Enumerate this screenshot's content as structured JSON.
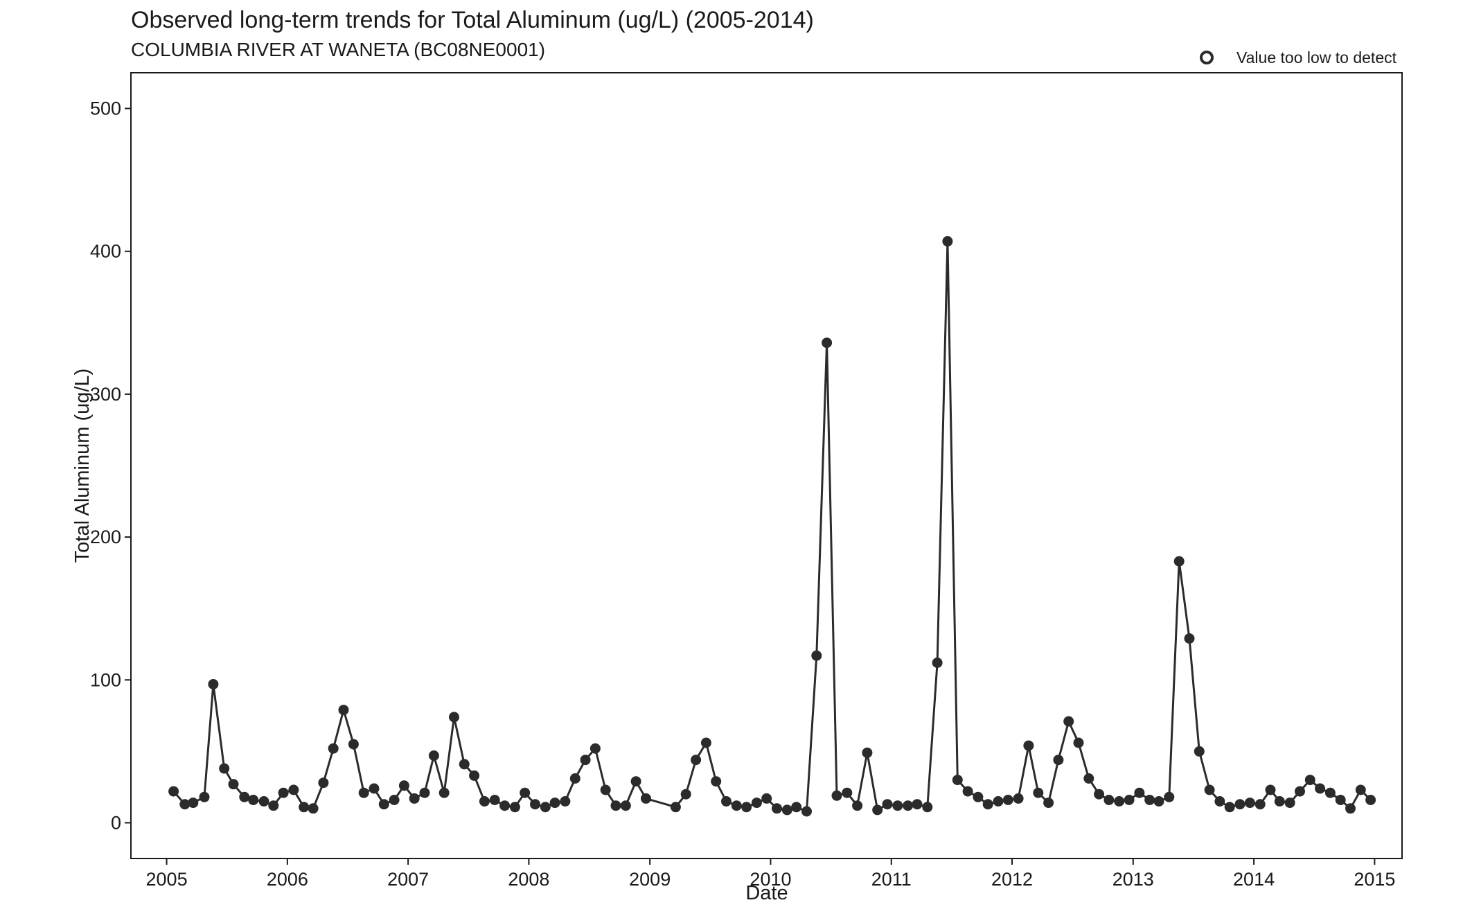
{
  "chart_data": {
    "type": "line",
    "title": "Observed long-term trends for Total Aluminum (ug/L) (2005-2014)",
    "subtitle": "COLUMBIA RIVER AT WANETA (BC08NE0001)",
    "xlabel": "Date",
    "ylabel": "Total Aluminum (ug/L)",
    "xlim": [
      "2004-09-15",
      "2015-03-25"
    ],
    "ylim": [
      -25,
      525
    ],
    "x_ticks": [
      "2005",
      "2006",
      "2007",
      "2008",
      "2009",
      "2010",
      "2011",
      "2012",
      "2013",
      "2014",
      "2015"
    ],
    "y_ticks": [
      0,
      100,
      200,
      300,
      400,
      500
    ],
    "grid": false,
    "legend": {
      "position": "top-right",
      "entries": [
        {
          "label": "Value too low to detect",
          "marker": "open-circle"
        }
      ]
    },
    "colors": {
      "series": "#2b2b2b",
      "frame": "#1a1a1a"
    },
    "series": [
      {
        "x": [
          "2005-01-22",
          "2005-02-25",
          "2005-03-22",
          "2005-04-25",
          "2005-05-22",
          "2005-06-24",
          "2005-07-22",
          "2005-08-24",
          "2005-09-20",
          "2005-10-22",
          "2005-11-20",
          "2005-12-20",
          "2006-01-20",
          "2006-02-20",
          "2006-03-20",
          "2006-04-20",
          "2006-05-20",
          "2006-06-20",
          "2006-07-20",
          "2006-08-20",
          "2006-09-20",
          "2006-10-20",
          "2006-11-20",
          "2006-12-20",
          "2007-01-20",
          "2007-02-20",
          "2007-03-20",
          "2007-04-20",
          "2007-05-20",
          "2007-06-20",
          "2007-07-20",
          "2007-08-20",
          "2007-09-20",
          "2007-10-20",
          "2007-11-20",
          "2007-12-20",
          "2008-01-20",
          "2008-02-20",
          "2008-03-20",
          "2008-04-20",
          "2008-05-20",
          "2008-06-20",
          "2008-07-20",
          "2008-08-20",
          "2008-09-20",
          "2008-10-20",
          "2008-11-20",
          "2008-12-20",
          "2009-03-20",
          "2009-04-20",
          "2009-05-20",
          "2009-06-20",
          "2009-07-20",
          "2009-08-20",
          "2009-09-20",
          "2009-10-20",
          "2009-11-20",
          "2009-12-20",
          "2010-01-20",
          "2010-02-20",
          "2010-03-20",
          "2010-04-20",
          "2010-05-20",
          "2010-06-20",
          "2010-07-20",
          "2010-08-20",
          "2010-09-20",
          "2010-10-20",
          "2010-11-20",
          "2010-12-20",
          "2011-01-20",
          "2011-02-20",
          "2011-03-20",
          "2011-04-20",
          "2011-05-20",
          "2011-06-20",
          "2011-07-20",
          "2011-08-20",
          "2011-09-20",
          "2011-10-20",
          "2011-11-20",
          "2011-12-20",
          "2012-01-20",
          "2012-02-20",
          "2012-03-20",
          "2012-04-20",
          "2012-05-20",
          "2012-06-20",
          "2012-07-20",
          "2012-08-20",
          "2012-09-20",
          "2012-10-20",
          "2012-11-20",
          "2012-12-20",
          "2013-01-20",
          "2013-02-20",
          "2013-03-20",
          "2013-04-20",
          "2013-05-20",
          "2013-06-20",
          "2013-07-20",
          "2013-08-20",
          "2013-09-20",
          "2013-10-20",
          "2013-11-20",
          "2013-12-20",
          "2014-01-20",
          "2014-02-20",
          "2014-03-20",
          "2014-04-20",
          "2014-05-20",
          "2014-06-20",
          "2014-07-20",
          "2014-08-20",
          "2014-09-20",
          "2014-10-20",
          "2014-11-20",
          "2014-12-20"
        ],
        "y": [
          22,
          13,
          14,
          18,
          97,
          38,
          27,
          18,
          16,
          15,
          12,
          21,
          23,
          11,
          10,
          28,
          52,
          79,
          55,
          21,
          24,
          13,
          16,
          26,
          17,
          21,
          47,
          21,
          74,
          41,
          33,
          15,
          16,
          12,
          11,
          21,
          13,
          11,
          14,
          15,
          31,
          44,
          52,
          23,
          12,
          12,
          29,
          17,
          11,
          20,
          44,
          56,
          29,
          15,
          12,
          11,
          14,
          17,
          10,
          9,
          11,
          8,
          117,
          336,
          19,
          21,
          12,
          49,
          9,
          13,
          12,
          12,
          13,
          11,
          112,
          407,
          30,
          22,
          18,
          13,
          15,
          16,
          17,
          54,
          21,
          14,
          44,
          71,
          56,
          31,
          20,
          16,
          15,
          16,
          21,
          16,
          15,
          18,
          183,
          129,
          50,
          23,
          15,
          11,
          13,
          14,
          13,
          23,
          15,
          14,
          22,
          30,
          24,
          21,
          16,
          10,
          23,
          16
        ]
      }
    ]
  }
}
